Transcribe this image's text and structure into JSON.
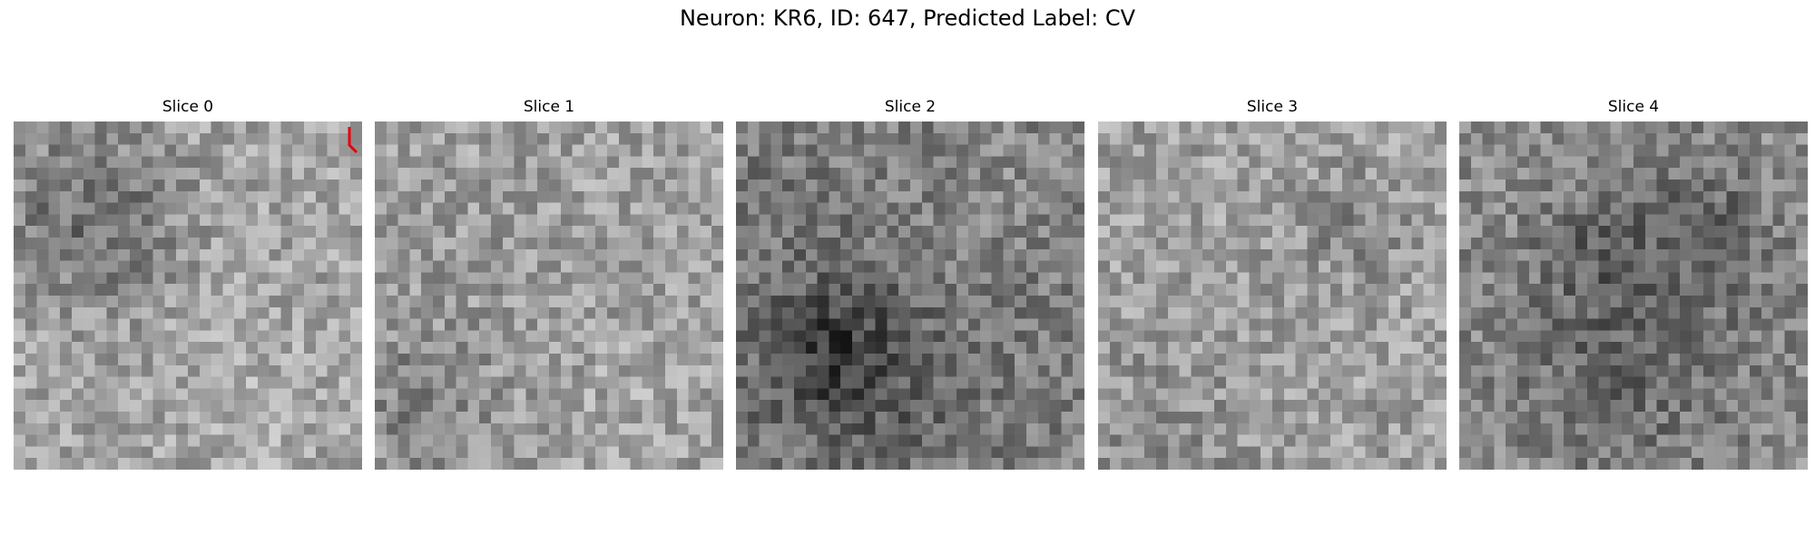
{
  "figure": {
    "title": "Neuron: KR6, ID: 647, Predicted Label: CV"
  },
  "slices": [
    {
      "title": "Slice 0"
    },
    {
      "title": "Slice 1"
    },
    {
      "title": "Slice 2"
    },
    {
      "title": "Slice 3"
    },
    {
      "title": "Slice 4"
    }
  ],
  "colors": {
    "marker": "#e8000b",
    "background": "#ffffff"
  }
}
